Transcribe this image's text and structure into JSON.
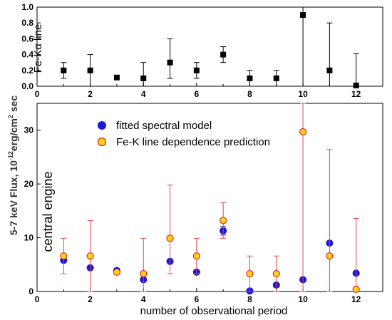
{
  "chart_data": [
    {
      "type": "scatter",
      "panel_label": "Fe-Kα line",
      "xlim": [
        0,
        13
      ],
      "ylim": [
        0,
        1.0
      ],
      "xticks": [
        0,
        2,
        4,
        6,
        8,
        10,
        12
      ],
      "yticks": [
        0.0,
        0.2,
        0.4,
        0.6,
        0.8,
        1.0
      ],
      "series": [
        {
          "marker": "square",
          "color": "#000000",
          "x": [
            1,
            2,
            3,
            4,
            5,
            6,
            7,
            8,
            9,
            10,
            11,
            12
          ],
          "y": [
            0.2,
            0.2,
            0.11,
            0.1,
            0.3,
            0.2,
            0.4,
            0.1,
            0.1,
            0.9,
            0.2,
            0.01
          ],
          "err_lo": [
            0.1,
            0.2,
            0.0,
            0.1,
            0.2,
            0.1,
            0.1,
            0.1,
            0.1,
            0.9,
            0.2,
            0.01
          ],
          "err_hi": [
            0.1,
            0.2,
            0.0,
            0.2,
            0.3,
            0.1,
            0.1,
            0.1,
            0.1,
            0.1,
            0.6,
            0.4
          ]
        }
      ]
    },
    {
      "type": "scatter",
      "panel_label": "central engine",
      "xlabel": "number of observational period",
      "ylabel_parts": [
        "5-7 keV Flux, 10",
        "-12",
        "erg/cm",
        "2",
        " sec"
      ],
      "xlim": [
        0,
        13
      ],
      "ylim": [
        0,
        35
      ],
      "xticks": [
        0,
        2,
        4,
        6,
        8,
        10,
        12
      ],
      "yticks": [
        0,
        10,
        20,
        30
      ],
      "legend_position": "top-left",
      "series": [
        {
          "name": "fitted spectral model",
          "marker": "circle",
          "color": "#1a1ad6",
          "x": [
            1,
            2,
            3,
            4,
            5,
            6,
            7,
            8,
            9,
            10,
            11,
            12
          ],
          "y": [
            5.8,
            4.4,
            3.9,
            2.2,
            5.6,
            3.6,
            11.3,
            0.1,
            1.2,
            2.2,
            9.0,
            3.4
          ],
          "err_lo": [
            0,
            0,
            0,
            0,
            0,
            0,
            0.8,
            0,
            0,
            0,
            0.3,
            0
          ],
          "err_hi": [
            0,
            0,
            0,
            0,
            0,
            0,
            0.8,
            0,
            0,
            0,
            0.3,
            0
          ]
        },
        {
          "name": "Fe-K line dependence prediction",
          "marker": "circle",
          "color": "#ffd21a",
          "edge_color": "#e0201a",
          "error_color": "#e8474c",
          "x": [
            1,
            2,
            3,
            4,
            5,
            6,
            7,
            8,
            9,
            10,
            11,
            12
          ],
          "y": [
            6.6,
            6.6,
            3.6,
            3.3,
            9.9,
            6.6,
            13.2,
            3.3,
            3.3,
            29.7,
            6.6,
            0.4
          ],
          "err_lo": [
            3.3,
            6.6,
            0.0,
            3.3,
            6.6,
            3.3,
            3.3,
            3.3,
            3.3,
            29.7,
            6.6,
            0.4
          ],
          "err_hi": [
            3.3,
            6.6,
            0.0,
            6.6,
            9.9,
            3.3,
            3.3,
            3.3,
            3.3,
            5.3,
            19.8,
            13.2
          ]
        }
      ]
    }
  ]
}
